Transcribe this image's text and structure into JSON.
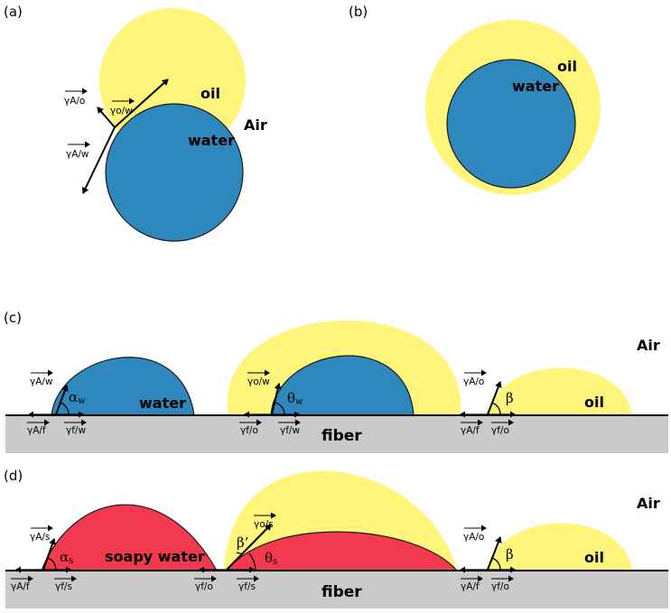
{
  "colors": {
    "oil": "#fff57a",
    "water": "#2e87bd",
    "soapy_water": "#f2394e",
    "fiber": "#cacaca",
    "outline": "#1a1a1a"
  },
  "panel_a": {
    "label": "(a)",
    "oil": "oil",
    "water": "water",
    "air": "Air",
    "gamma_ow": "γo/w",
    "gamma_ao": "γA/o",
    "gamma_aw": "γA/w"
  },
  "panel_b": {
    "label": "(b)",
    "oil": "oil",
    "water": "water"
  },
  "panel_c": {
    "label": "(c)",
    "air": "Air",
    "fiber": "fiber",
    "water": "water",
    "oil": "oil",
    "gamma_aw": "γA/w",
    "alpha": "α",
    "alpha_sub": "w",
    "gamma_af_1": "γA/f",
    "gamma_fw_1": "γf/w",
    "gamma_ow": "γo/w",
    "theta": "θ",
    "theta_sub": "w",
    "gamma_fo_1": "γf/o",
    "gamma_fw_2": "γf/w",
    "gamma_ao": "γA/o",
    "beta": "β",
    "gamma_af_2": "γA/f",
    "gamma_fo_2": "γf/o"
  },
  "panel_d": {
    "label": "(d)",
    "air": "Air",
    "fiber": "fiber",
    "soapy_water": "soapy water",
    "oil": "oil",
    "gamma_as": "γA/s",
    "alpha": "α",
    "alpha_sub": "s",
    "gamma_af_1": "γA/f",
    "gamma_fs_1": "γf/s",
    "gamma_fo_1": "γf/o",
    "gamma_os": "γo/s",
    "beta_prime": "β’",
    "theta": "θ",
    "theta_sub": "s",
    "gamma_fs_2": "γf/s",
    "gamma_ao": "γA/o",
    "beta": "β",
    "gamma_af_2": "γA/f",
    "gamma_fo_2": "γf/o"
  }
}
